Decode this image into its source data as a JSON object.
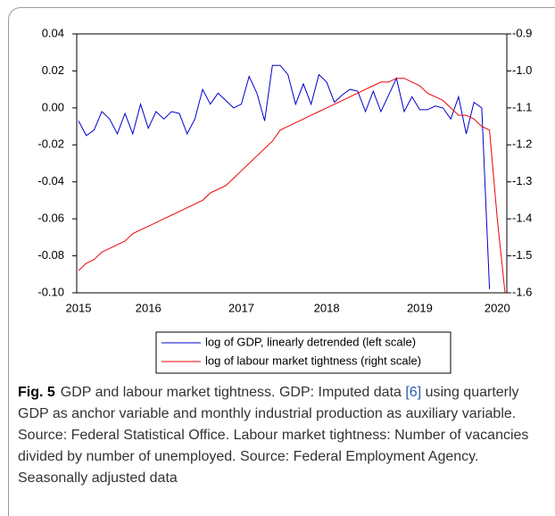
{
  "chart_data": {
    "type": "line",
    "categories": [
      "2015",
      null,
      null,
      null,
      null,
      null,
      null,
      null,
      null,
      "2016",
      null,
      null,
      null,
      null,
      null,
      null,
      null,
      null,
      null,
      null,
      null,
      "2017",
      null,
      null,
      null,
      null,
      null,
      null,
      null,
      null,
      null,
      null,
      "2018",
      null,
      null,
      null,
      null,
      null,
      null,
      null,
      null,
      null,
      null,
      null,
      "2019",
      null,
      null,
      null,
      null,
      null,
      null,
      null,
      null,
      null,
      "2020",
      null
    ],
    "ylim": [
      -0.1,
      0.04
    ],
    "yticks": [
      {
        "value": 0.04,
        "label": "0.04"
      },
      {
        "value": 0.02,
        "label": "0.02"
      },
      {
        "value": 0,
        "label": "0.00"
      },
      {
        "value": -0.02,
        "label": "-0.02"
      },
      {
        "value": -0.04,
        "label": "-0.04"
      },
      {
        "value": -0.06,
        "label": "-0.06"
      },
      {
        "value": -0.08,
        "label": "-0.08"
      },
      {
        "value": -0.1,
        "label": "-0.10"
      }
    ],
    "y2lim": [
      -1.6,
      -0.9
    ],
    "y2ticks": [
      {
        "value": -0.9,
        "label": "-0.9"
      },
      {
        "value": -1.0,
        "label": "-1.0"
      },
      {
        "value": -1.1,
        "label": "-1.1"
      },
      {
        "value": -1.2,
        "label": "-1.2"
      },
      {
        "value": -1.3,
        "label": "-1.3"
      },
      {
        "value": -1.4,
        "label": "-1.4"
      },
      {
        "value": -1.5,
        "label": "-1.5"
      },
      {
        "value": -1.6,
        "label": "-1.6"
      }
    ],
    "series": [
      {
        "name": "log of GDP, linearly detrended (left scale)",
        "color": "#0000cc",
        "values": [
          -0.007,
          -0.015,
          -0.012,
          -0.002,
          -0.006,
          -0.014,
          -0.003,
          -0.014,
          0.002,
          -0.011,
          -0.002,
          -0.006,
          -0.002,
          -0.003,
          -0.014,
          -0.006,
          0.01,
          0.002,
          0.008,
          0.004,
          0.0,
          0.002,
          0.017,
          0.008,
          -0.007,
          0.023,
          0.023,
          0.018,
          0.002,
          0.013,
          0.002,
          0.018,
          0.014,
          0.003,
          0.007,
          0.01,
          0.009,
          -0.002,
          0.009,
          -0.002,
          0.007,
          0.016,
          -0.002,
          0.006,
          -0.001,
          -0.001,
          0.001,
          0.0,
          -0.006,
          0.006,
          -0.014,
          0.003,
          0.0,
          -0.098,
          null,
          null
        ]
      },
      {
        "name": "log of labour market tightness (right scale)",
        "color": "#ee0000",
        "axis": "y2",
        "values": [
          -1.54,
          -1.52,
          -1.51,
          -1.49,
          -1.48,
          -1.47,
          -1.46,
          -1.44,
          -1.43,
          -1.42,
          -1.41,
          -1.4,
          -1.39,
          -1.38,
          -1.37,
          -1.36,
          -1.35,
          -1.33,
          -1.32,
          -1.31,
          -1.29,
          -1.27,
          -1.25,
          -1.23,
          -1.21,
          -1.19,
          -1.16,
          -1.15,
          -1.14,
          -1.13,
          -1.12,
          -1.11,
          -1.1,
          -1.09,
          -1.08,
          -1.07,
          -1.06,
          -1.05,
          -1.04,
          -1.03,
          -1.03,
          -1.02,
          -1.02,
          -1.03,
          -1.04,
          -1.06,
          -1.07,
          -1.08,
          -1.1,
          -1.12,
          -1.12,
          -1.13,
          -1.15,
          -1.16,
          -1.4,
          -1.6
        ]
      }
    ],
    "grid": false,
    "legend": "bottom"
  },
  "caption": {
    "label": "Fig. 5",
    "parts": [
      "GDP and labour market tightness. GDP: Imputed data ",
      "[6]",
      " using quarterly GDP as anchor variable and monthly industrial production as auxiliary variable. Source: Federal Statistical Office. Labour market tightness: Number of vacancies divided by number of unemployed. Source: Federal Employment Agency. Seasonally adjusted data"
    ]
  }
}
